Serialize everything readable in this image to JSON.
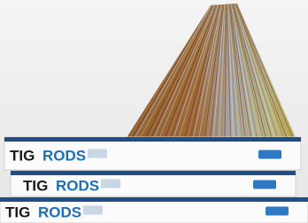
{
  "boxes": [
    {
      "word1": "TIG",
      "word2": "RODS"
    },
    {
      "word1": "TIG",
      "word2": "RODS"
    },
    {
      "word1": "TIG",
      "word2": "RODS"
    }
  ]
}
